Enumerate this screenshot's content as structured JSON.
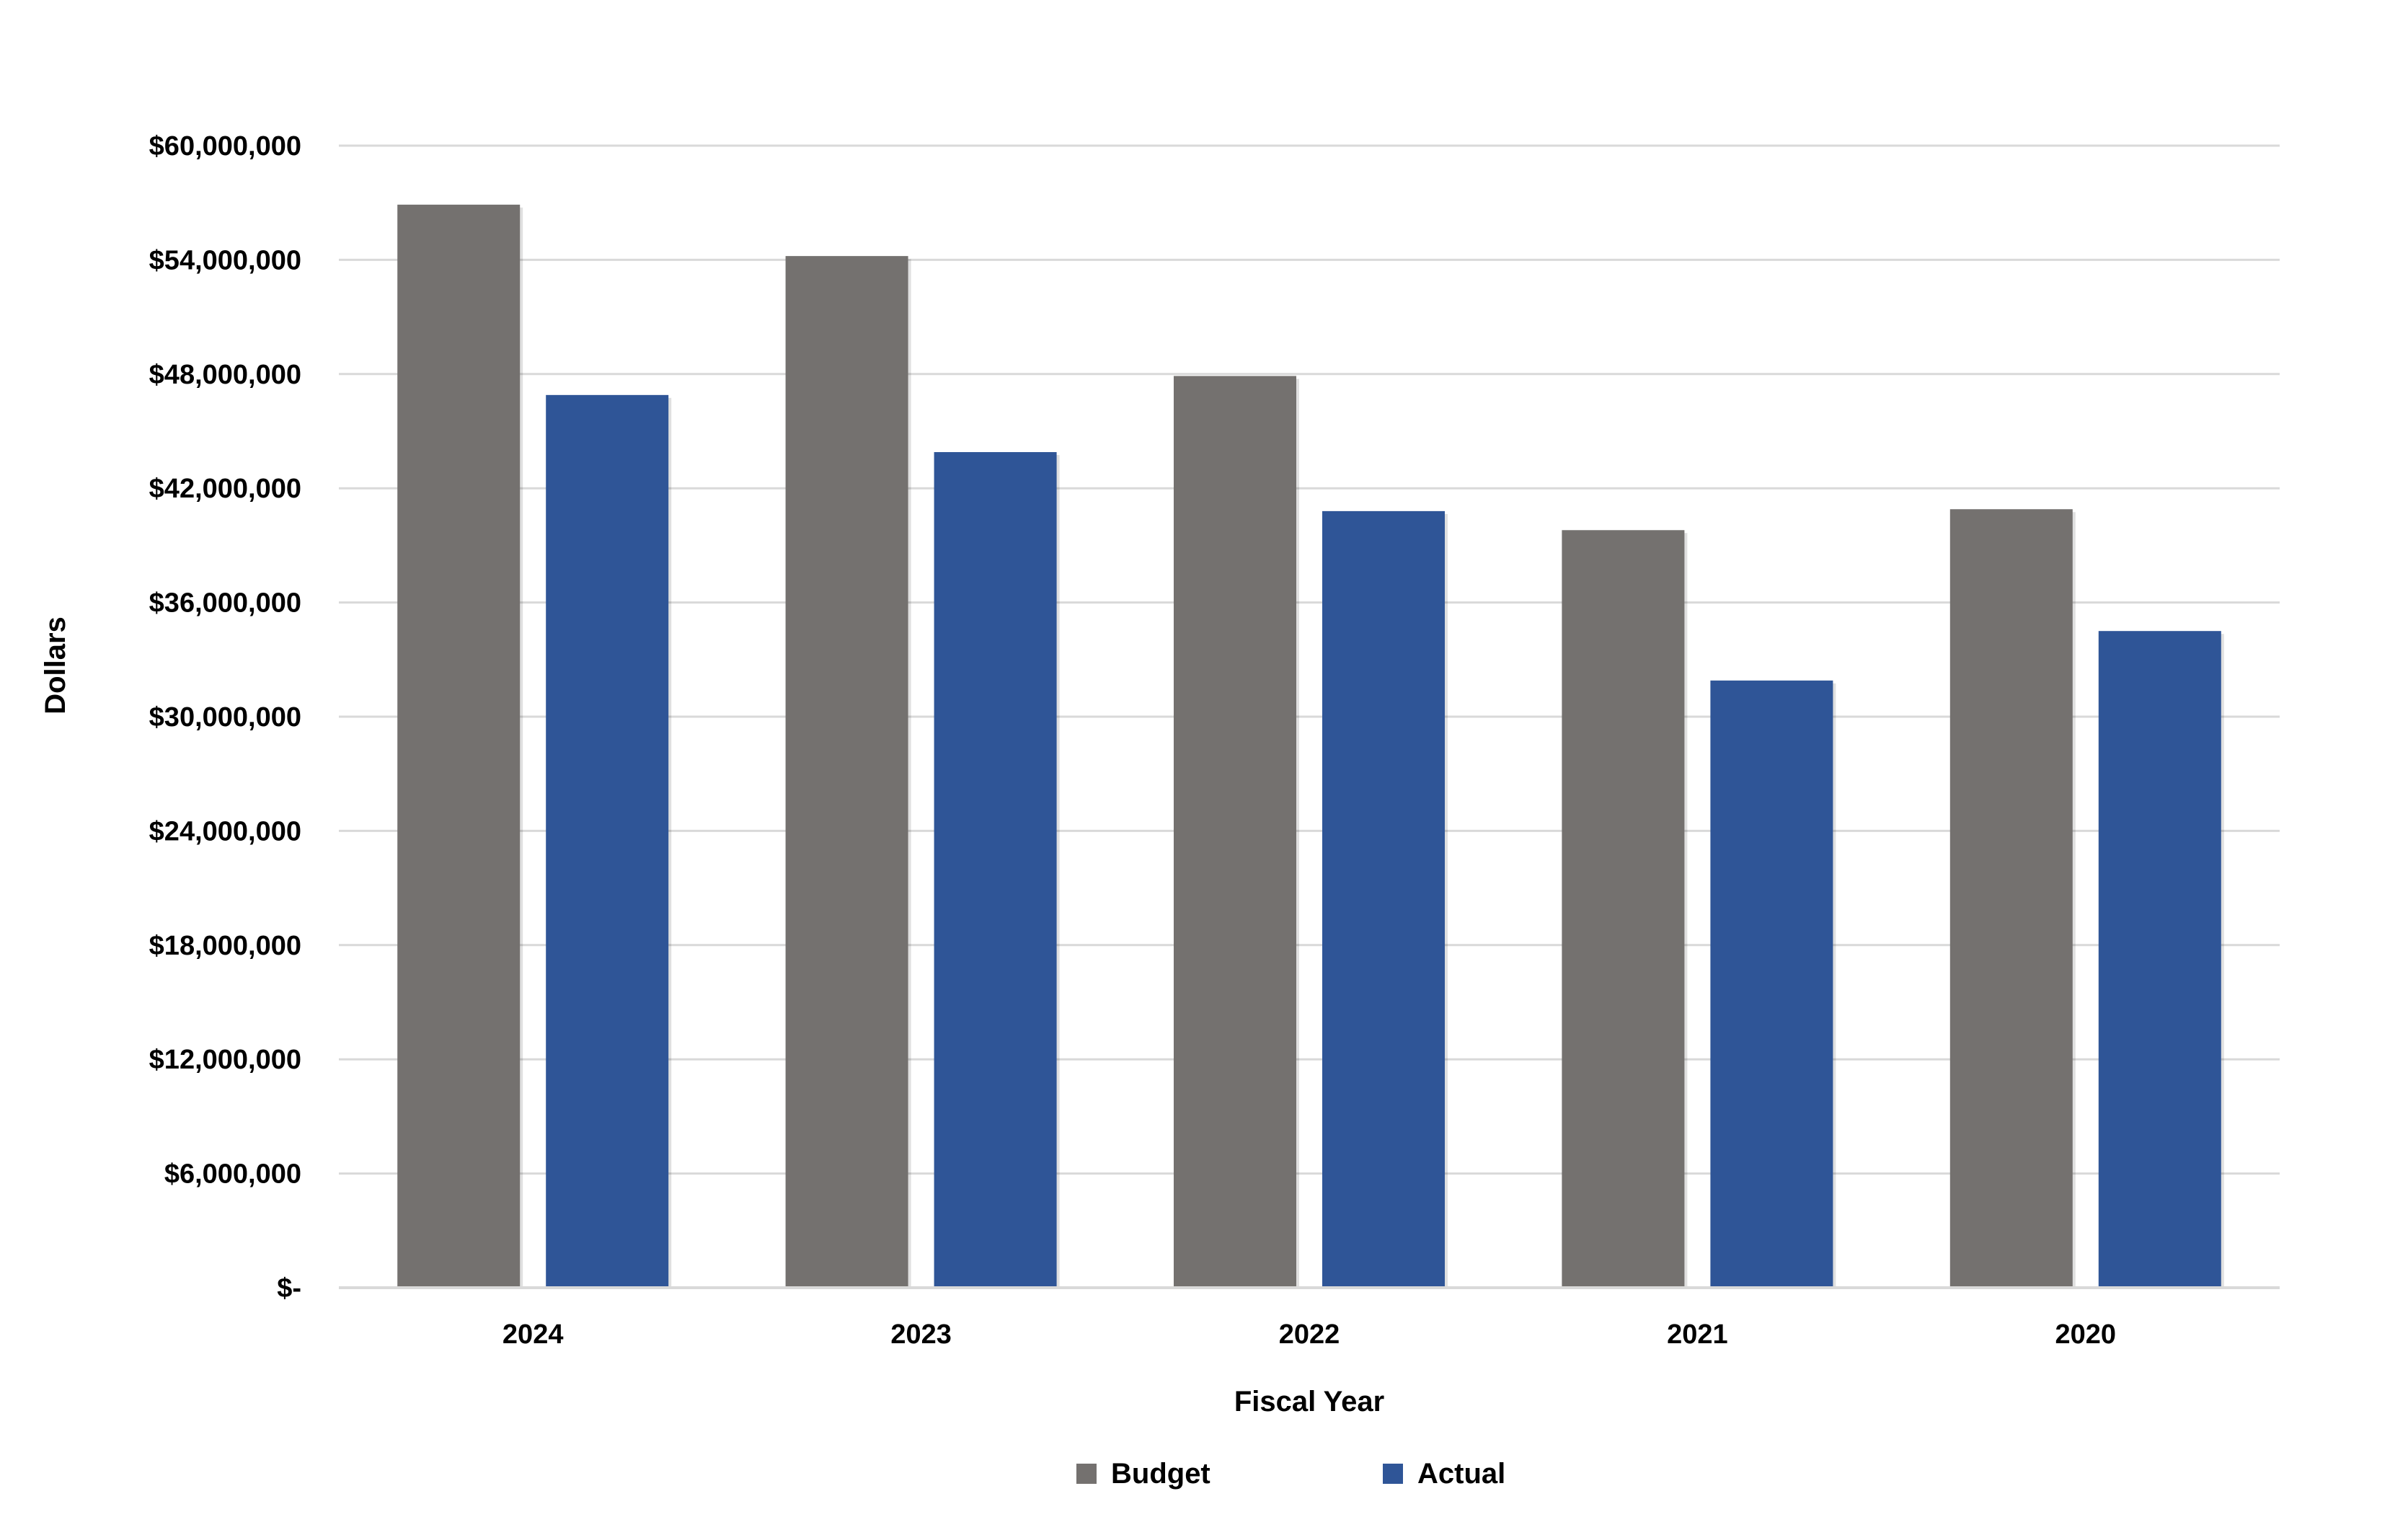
{
  "chart_data": {
    "type": "bar",
    "title": "",
    "xlabel": "Fiscal Year",
    "ylabel": "Dollars",
    "categories": [
      "2024",
      "2023",
      "2022",
      "2021",
      "2020"
    ],
    "series": [
      {
        "name": "Budget",
        "color": "#74716f",
        "values": [
          56900000,
          54200000,
          47900000,
          39800000,
          40900000
        ]
      },
      {
        "name": "Actual",
        "color": "#2f5597",
        "values": [
          46900000,
          43900000,
          40800000,
          31900000,
          34500000
        ]
      }
    ],
    "ylim": [
      0,
      60000000
    ],
    "yticks": [
      0,
      6000000,
      12000000,
      18000000,
      24000000,
      30000000,
      36000000,
      42000000,
      48000000,
      54000000,
      60000000
    ],
    "ytick_labels": [
      "$-",
      "$6,000,000",
      "$12,000,000",
      "$18,000,000",
      "$24,000,000",
      "$30,000,000",
      "$36,000,000",
      "$42,000,000",
      "$48,000,000",
      "$54,000,000",
      "$60,000,000"
    ],
    "grid": true,
    "legend": "bottom"
  }
}
